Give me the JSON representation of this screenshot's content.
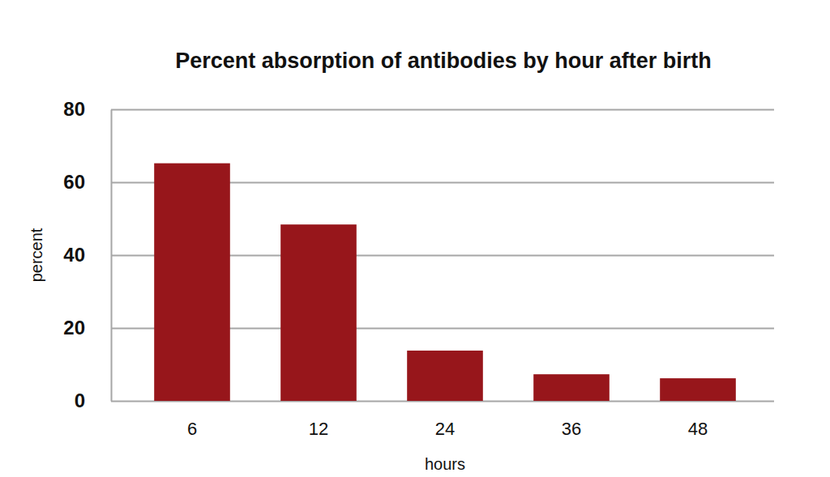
{
  "chart_data": {
    "type": "bar",
    "title": "Percent absorption of antibodies by hour after birth",
    "x_label": "hours",
    "y_label": "percent",
    "categories": [
      "6",
      "12",
      "24",
      "36",
      "48"
    ],
    "values": [
      65.2,
      48.4,
      13.8,
      7.3,
      6.2
    ],
    "color": "#97161b",
    "ylim": [
      0,
      80
    ],
    "yticks": [
      0,
      20,
      40,
      60,
      80
    ],
    "grid": true
  }
}
